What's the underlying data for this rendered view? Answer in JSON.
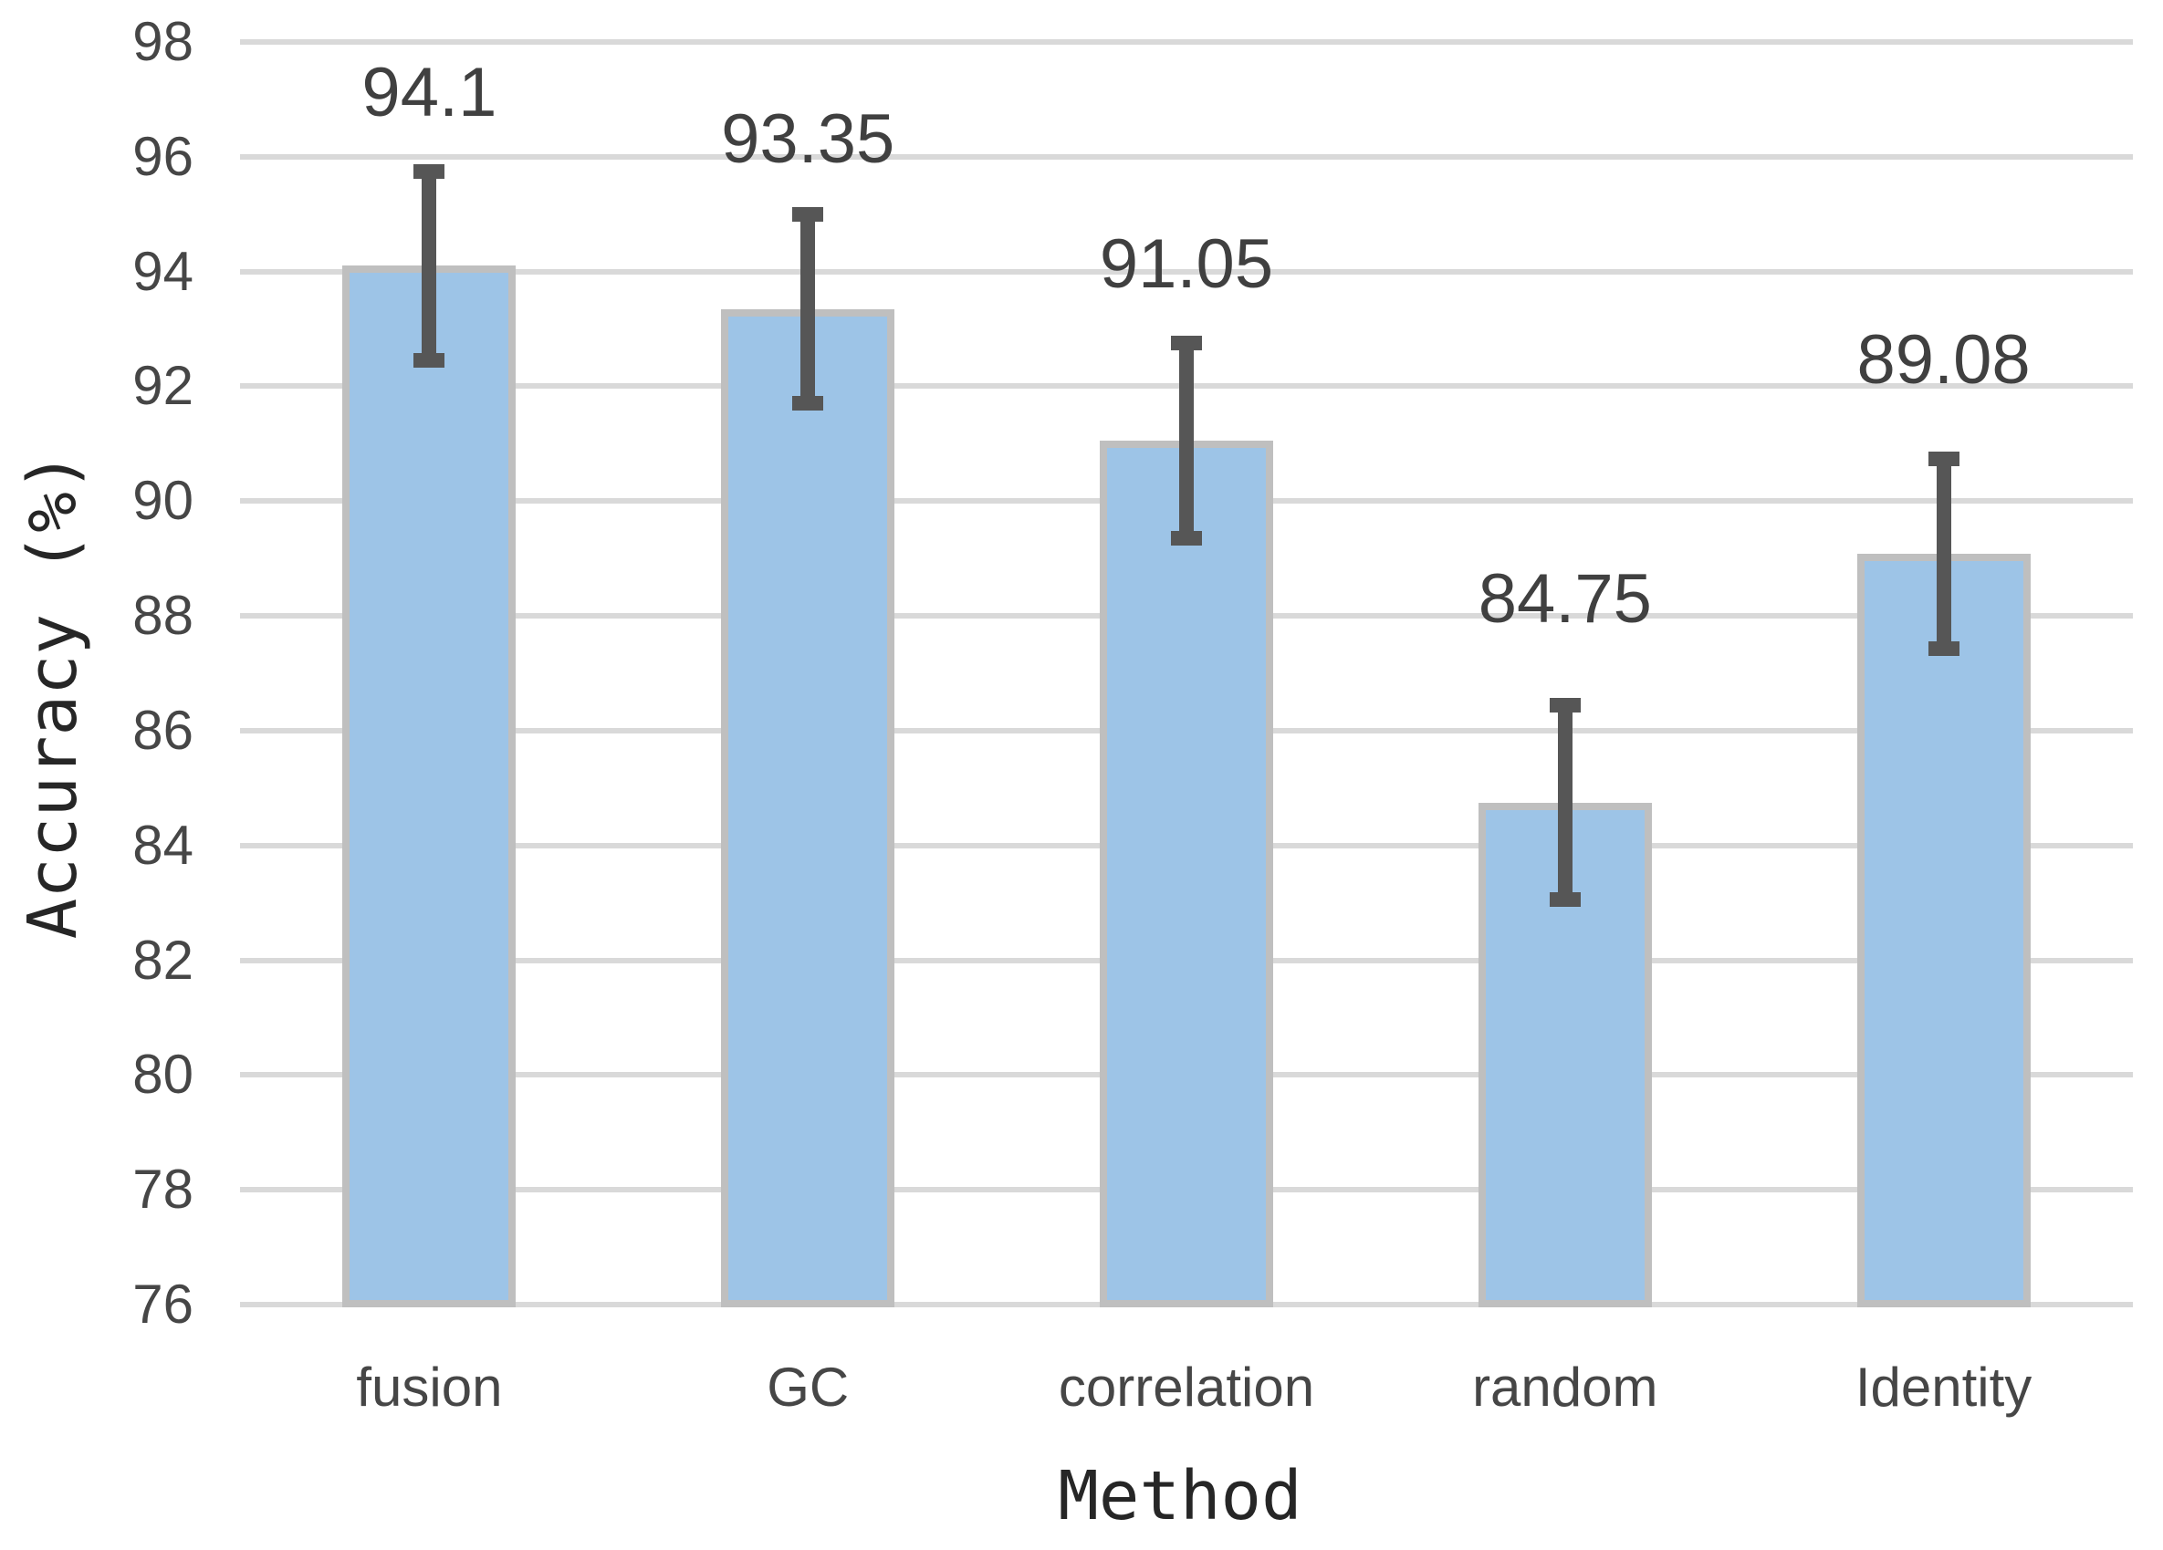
{
  "chart_data": {
    "type": "bar",
    "title": "",
    "xlabel": "Method",
    "ylabel": "Accuracy（%）",
    "categories": [
      "fusion",
      "GC",
      "correlation",
      "random",
      "Identity"
    ],
    "values": [
      94.1,
      93.35,
      91.05,
      84.75,
      89.08
    ],
    "data_labels": [
      "94.1",
      "93.35",
      "91.05",
      "84.75",
      "89.08"
    ],
    "error_plus": [
      1.65,
      1.65,
      1.7,
      1.7,
      1.65
    ],
    "error_minus": [
      1.65,
      1.65,
      1.7,
      1.7,
      1.65
    ],
    "ylim": [
      76,
      98
    ],
    "ytick_step": 2,
    "ytick_labels": [
      "76",
      "78",
      "80",
      "82",
      "84",
      "86",
      "88",
      "90",
      "92",
      "94",
      "96",
      "98"
    ],
    "grid": "horizontal-major-only",
    "legend": "none",
    "data_label_position": "above-error-bar",
    "colors": {
      "bar_fill": "#9dc4e7",
      "bar_border": "#bfbfbf",
      "error_bar": "#565656",
      "gridline": "#d9d9d9",
      "label_text": "#404040",
      "tick_text": "#464646",
      "axis_title_text": "#262626",
      "background": "#ffffff"
    }
  }
}
